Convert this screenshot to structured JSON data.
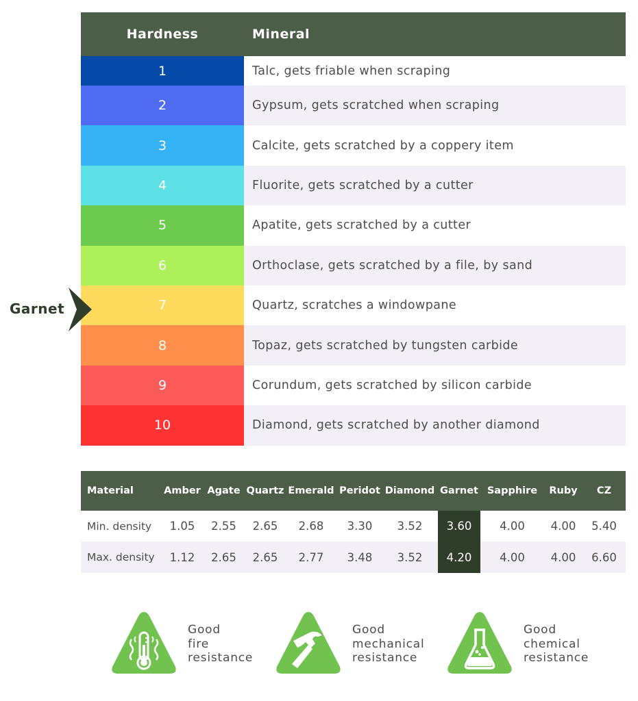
{
  "hardness_table": {
    "header": {
      "hardness": "Hardness",
      "mineral": "Mineral"
    },
    "rows": [
      {
        "value": "1",
        "mineral": "Talc, gets friable when scraping",
        "color": "#064aa8"
      },
      {
        "value": "2",
        "mineral": "Gypsum, gets scratched when scraping",
        "color": "#4f6bf2"
      },
      {
        "value": "3",
        "mineral": "Calcite, gets scratched by a coppery item",
        "color": "#36b3f5"
      },
      {
        "value": "4",
        "mineral": "Fluorite, gets scratched by a cutter",
        "color": "#5ee1e6"
      },
      {
        "value": "5",
        "mineral": "Apatite, gets scratched by a cutter",
        "color": "#6ccb4f"
      },
      {
        "value": "6",
        "mineral": "Orthoclase, gets scratched by a file, by sand",
        "color": "#acf05a"
      },
      {
        "value": "7",
        "mineral": "Quartz, scratches a windowpane",
        "color": "#fedb5c"
      },
      {
        "value": "8",
        "mineral": "Topaz, gets scratched by tungsten carbide",
        "color": "#ff8f4a"
      },
      {
        "value": "9",
        "mineral": "Corundum, gets scratched by silicon carbide",
        "color": "#fd5a5a"
      },
      {
        "value": "10",
        "mineral": "Diamond, gets scratched by another diamond",
        "color": "#ff3333"
      }
    ],
    "marker_label": "Garnet"
  },
  "density_table": {
    "columns": [
      "Material",
      "Amber",
      "Agate",
      "Quartz",
      "Emerald",
      "Peridot",
      "Diamond",
      "Garnet",
      "Sapphire",
      "Ruby",
      "CZ"
    ],
    "highlight_column": 7,
    "rows": [
      {
        "label": "Min. density",
        "values": [
          "1.05",
          "2.55",
          "2.65",
          "2.68",
          "3.30",
          "3.52",
          "3.60",
          "4.00",
          "4.00",
          "5.40"
        ]
      },
      {
        "label": "Max. density",
        "values": [
          "1.12",
          "2.65",
          "2.65",
          "2.77",
          "3.48",
          "3.52",
          "4.20",
          "4.00",
          "4.00",
          "6.60"
        ]
      }
    ]
  },
  "properties": [
    {
      "icon": "thermometer-icon",
      "lines": [
        "Good",
        "fire",
        "resistance"
      ]
    },
    {
      "icon": "hammer-icon",
      "lines": [
        "Good",
        "mechanical",
        "resistance"
      ]
    },
    {
      "icon": "flask-icon",
      "lines": [
        "Good",
        "chemical",
        "resistance"
      ]
    }
  ],
  "colors": {
    "header": "#4d5e48",
    "highlight": "#2f3d2b",
    "icon": "#72c24f",
    "alt_row": "#f2f0f6"
  }
}
